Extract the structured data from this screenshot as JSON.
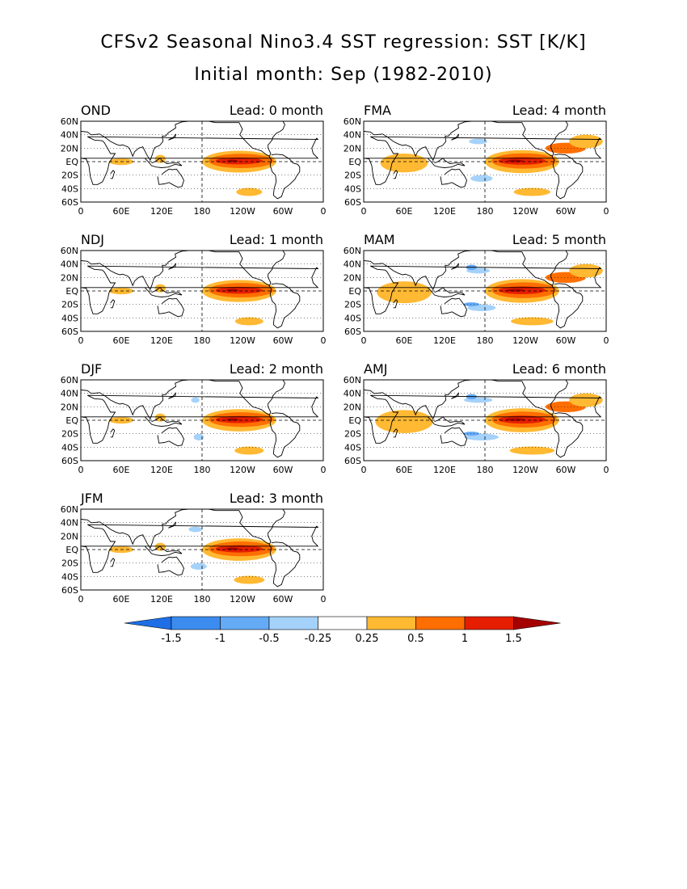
{
  "title": "CFSv2 Seasonal Nino3.4 SST regression: SST [K/K]",
  "subtitle": "Initial month: Sep (1982-2010)",
  "lat_labels": [
    "60N",
    "40N",
    "20N",
    "EQ",
    "20S",
    "40S",
    "60S"
  ],
  "lon_labels": [
    "0",
    "60E",
    "120E",
    "180",
    "120W",
    "60W",
    "0"
  ],
  "colors": {
    "neg3": "#1e6ee6",
    "neg2": "#3c8cf0",
    "neg1": "#64aaf5",
    "neg0": "#a5d2fa",
    "pos0": "#ffb932",
    "pos1": "#ff6e00",
    "pos2": "#e61e00",
    "pos3": "#a50000",
    "land": "#000000"
  },
  "panels": [
    {
      "season": "OND",
      "lead": "Lead: 0 month",
      "strength": 0.55,
      "neg": 0.1
    },
    {
      "season": "NDJ",
      "lead": "Lead: 1 month",
      "strength": 0.6,
      "neg": 0.15
    },
    {
      "season": "DJF",
      "lead": "Lead: 2 month",
      "strength": 0.62,
      "neg": 0.25
    },
    {
      "season": "JFM",
      "lead": "Lead: 3 month",
      "strength": 0.65,
      "neg": 0.4
    },
    {
      "season": "FMA",
      "lead": "Lead: 4 month",
      "strength": 0.78,
      "neg": 0.55
    },
    {
      "season": "MAM",
      "lead": "Lead: 5 month",
      "strength": 0.9,
      "neg": 0.7
    },
    {
      "season": "AMJ",
      "lead": "Lead: 6 month",
      "strength": 0.95,
      "neg": 0.85
    }
  ],
  "colorbar": {
    "labels": [
      "-1.5",
      "-1",
      "-0.5",
      "-0.25",
      "0.25",
      "0.5",
      "1",
      "1.5"
    ],
    "colors": [
      "#1e6ee6",
      "#3c8cf0",
      "#64aaf5",
      "#a5d2fa",
      "#ffffff",
      "#ffb932",
      "#ff6e00",
      "#e61e00",
      "#a50000"
    ]
  }
}
